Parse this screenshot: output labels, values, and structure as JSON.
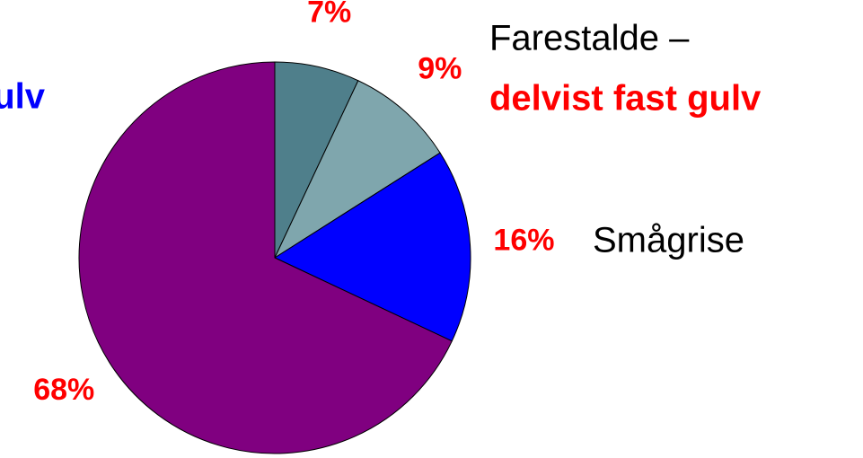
{
  "chart_data": {
    "type": "pie",
    "categories": [
      null,
      null,
      null,
      null
    ],
    "values": [
      7,
      9,
      16,
      68
    ],
    "value_labels": [
      "7%",
      "9%",
      "16%",
      "68%"
    ],
    "colors": [
      "#4f7f8b",
      "#7fa6ad",
      "#0000ff",
      "#800080"
    ],
    "annotations": [
      "ulv",
      "Farestalde –",
      "delvist fast gulv",
      "Smågrise"
    ]
  }
}
